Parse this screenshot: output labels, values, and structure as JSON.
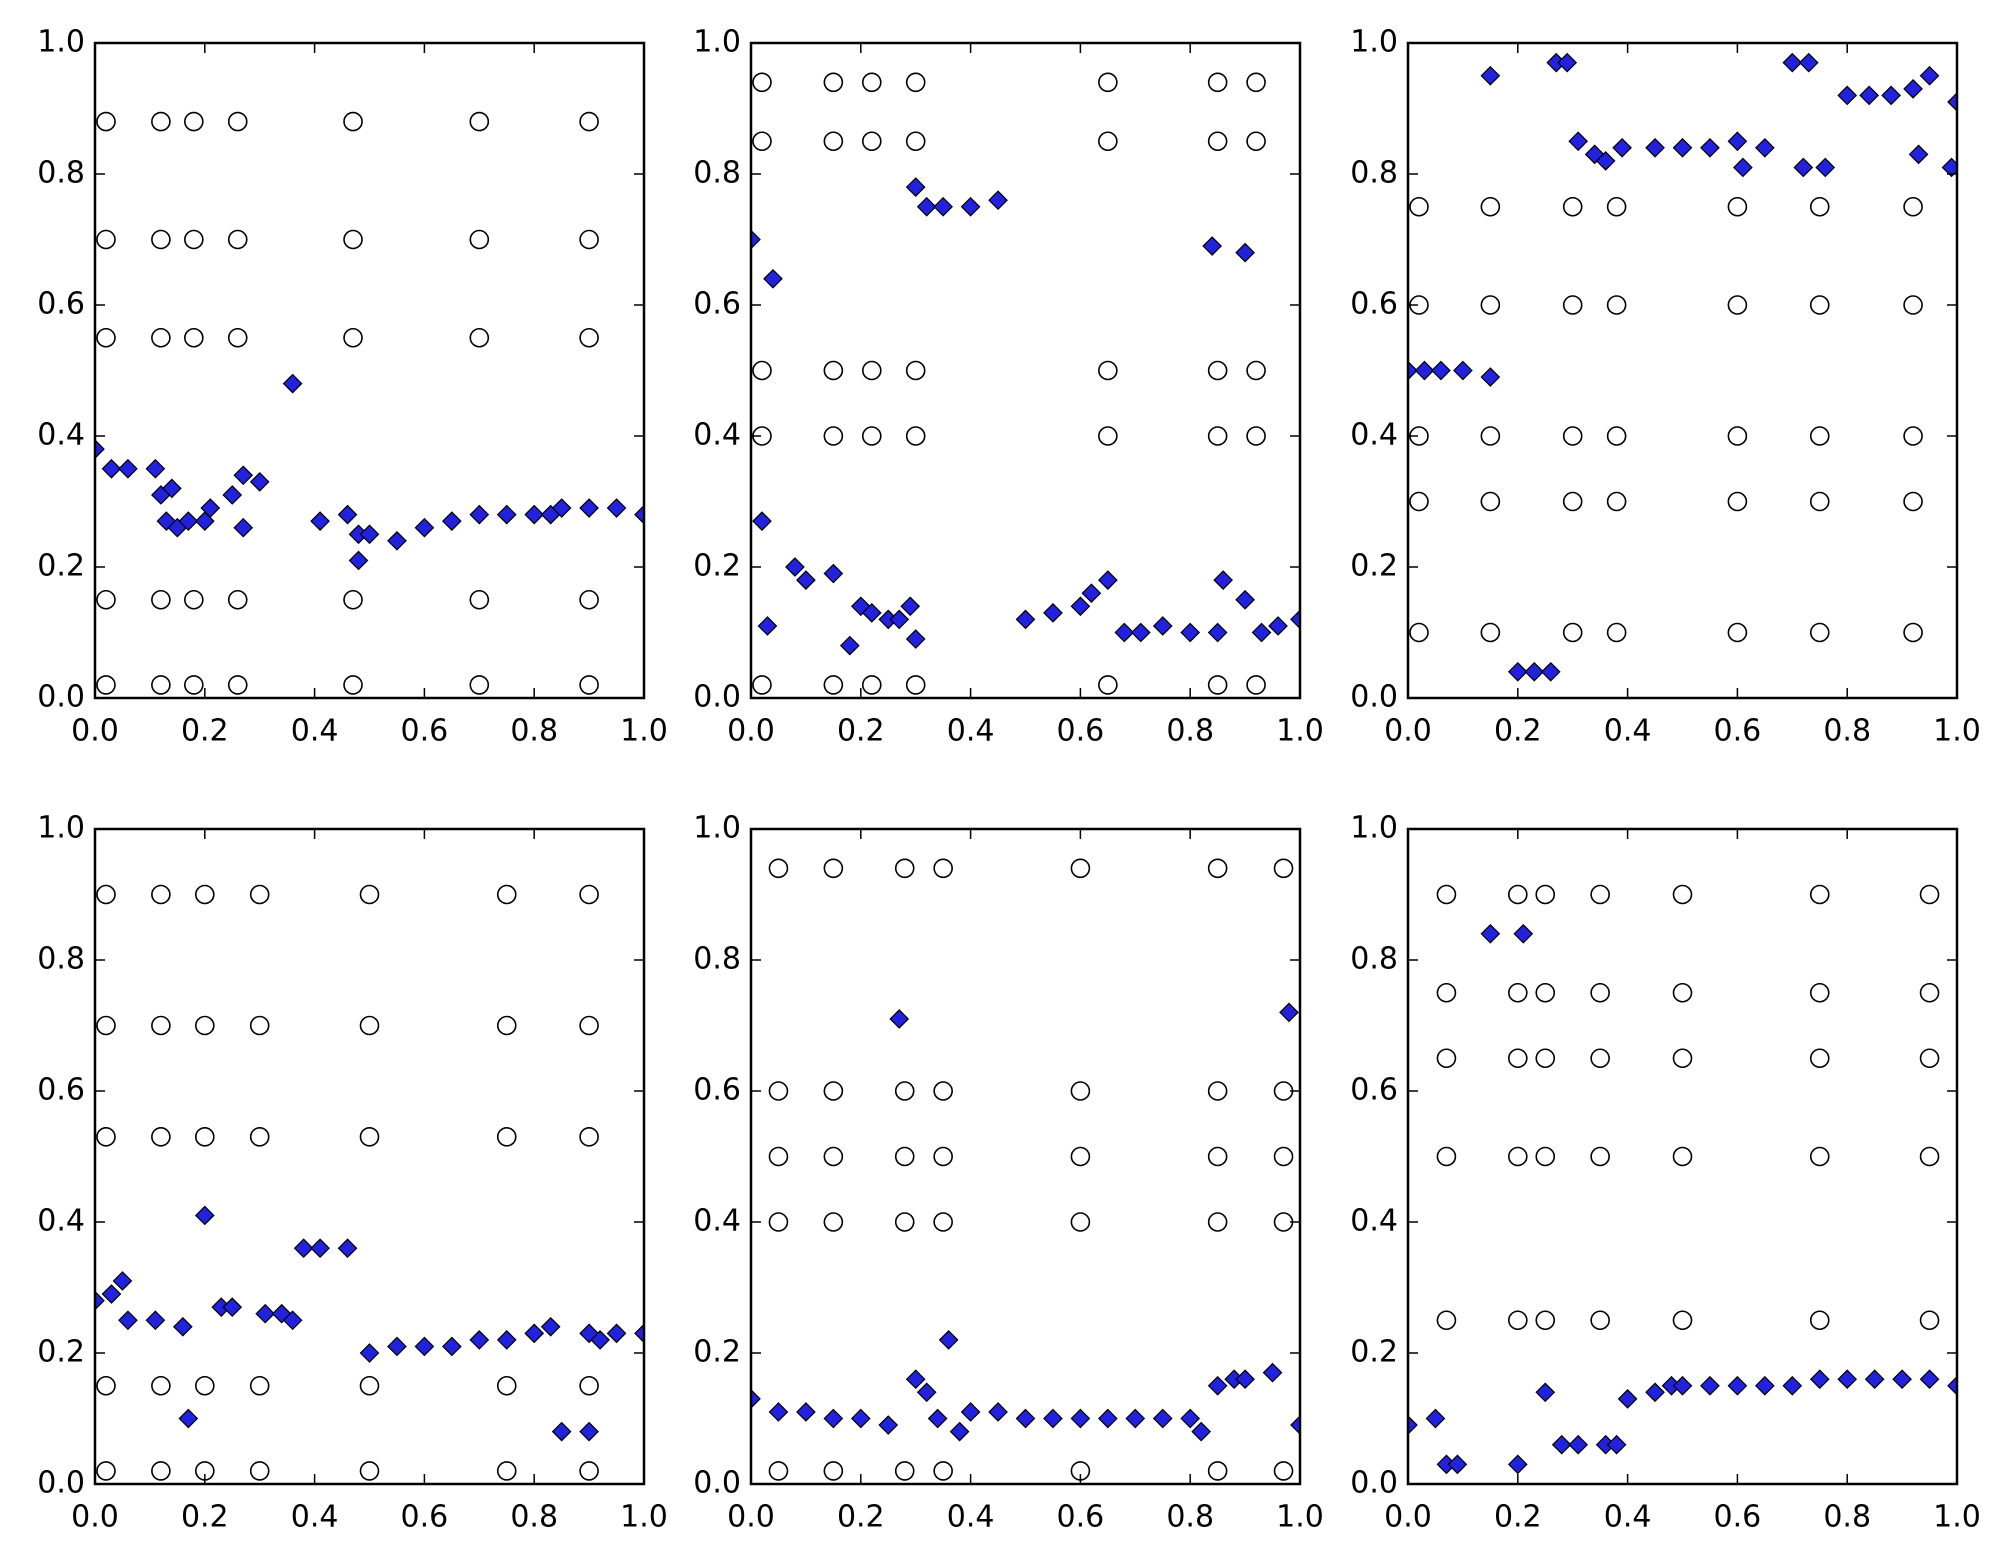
{
  "chart_data": [
    {
      "type": "scatter",
      "xlim": [
        0,
        1
      ],
      "ylim": [
        0,
        1
      ],
      "xticks": [
        {
          "value": 0,
          "label": "0.0"
        },
        0.2,
        0.4,
        0.6,
        0.8,
        {
          "value": 1,
          "label": "1.0"
        }
      ],
      "yticks": [
        {
          "value": 0,
          "label": "0.0"
        },
        0.2,
        0.4,
        0.6,
        0.8,
        {
          "value": 1,
          "label": "1.0"
        }
      ],
      "series": [
        {
          "marker": "circle",
          "color": "#000000",
          "x": [
            0.02,
            0.12,
            0.18,
            0.26,
            0.47,
            0.7,
            0.9,
            0.02,
            0.12,
            0.18,
            0.26,
            0.47,
            0.7,
            0.9,
            0.02,
            0.12,
            0.18,
            0.26,
            0.47,
            0.7,
            0.9,
            0.02,
            0.12,
            0.18,
            0.26,
            0.47,
            0.7,
            0.9,
            0.02,
            0.12,
            0.18,
            0.26,
            0.47,
            0.7,
            0.9
          ],
          "y": [
            0.02,
            0.02,
            0.02,
            0.02,
            0.02,
            0.02,
            0.02,
            0.15,
            0.15,
            0.15,
            0.15,
            0.15,
            0.15,
            0.15,
            0.55,
            0.55,
            0.55,
            0.55,
            0.55,
            0.55,
            0.55,
            0.7,
            0.7,
            0.7,
            0.7,
            0.7,
            0.7,
            0.7,
            0.88,
            0.88,
            0.88,
            0.88,
            0.88,
            0.88,
            0.88
          ]
        },
        {
          "marker": "diamond",
          "color": "#2222dd",
          "x": [
            0.0,
            0.03,
            0.06,
            0.11,
            0.12,
            0.14,
            0.13,
            0.15,
            0.17,
            0.2,
            0.21,
            0.25,
            0.27,
            0.3,
            0.27,
            0.36,
            0.41,
            0.46,
            0.48,
            0.5,
            0.48,
            0.55,
            0.6,
            0.65,
            0.7,
            0.75,
            0.8,
            0.83,
            0.85,
            0.9,
            0.95,
            1.0
          ],
          "y": [
            0.38,
            0.35,
            0.35,
            0.35,
            0.31,
            0.32,
            0.27,
            0.26,
            0.27,
            0.27,
            0.29,
            0.31,
            0.34,
            0.33,
            0.26,
            0.48,
            0.27,
            0.28,
            0.25,
            0.25,
            0.21,
            0.24,
            0.26,
            0.27,
            0.28,
            0.28,
            0.28,
            0.28,
            0.29,
            0.29,
            0.29,
            0.28
          ]
        }
      ]
    },
    {
      "type": "scatter",
      "xlim": [
        0,
        1
      ],
      "ylim": [
        0,
        1
      ],
      "xticks": [
        {
          "value": 0,
          "label": "0.0"
        },
        0.2,
        0.4,
        0.6,
        0.8,
        {
          "value": 1,
          "label": "1.0"
        }
      ],
      "yticks": [
        {
          "value": 0,
          "label": "0.0"
        },
        0.2,
        0.4,
        0.6,
        0.8,
        {
          "value": 1,
          "label": "1.0"
        }
      ],
      "series": [
        {
          "marker": "circle",
          "color": "#000000",
          "x": [
            0.02,
            0.15,
            0.22,
            0.3,
            0.65,
            0.85,
            0.92,
            0.02,
            0.15,
            0.22,
            0.3,
            0.65,
            0.85,
            0.92,
            0.02,
            0.15,
            0.22,
            0.3,
            0.65,
            0.85,
            0.92,
            0.02,
            0.15,
            0.22,
            0.3,
            0.65,
            0.85,
            0.92,
            0.02,
            0.15,
            0.22,
            0.3,
            0.65,
            0.85,
            0.92
          ],
          "y": [
            0.02,
            0.02,
            0.02,
            0.02,
            0.02,
            0.02,
            0.02,
            0.4,
            0.4,
            0.4,
            0.4,
            0.4,
            0.4,
            0.4,
            0.5,
            0.5,
            0.5,
            0.5,
            0.5,
            0.5,
            0.5,
            0.85,
            0.85,
            0.85,
            0.85,
            0.85,
            0.85,
            0.85,
            0.94,
            0.94,
            0.94,
            0.94,
            0.94,
            0.94,
            0.94
          ]
        },
        {
          "marker": "diamond",
          "color": "#2222dd",
          "x": [
            0.0,
            0.04,
            0.02,
            0.03,
            0.08,
            0.1,
            0.15,
            0.18,
            0.2,
            0.22,
            0.25,
            0.27,
            0.29,
            0.3,
            0.3,
            0.32,
            0.35,
            0.4,
            0.45,
            0.5,
            0.55,
            0.6,
            0.62,
            0.65,
            0.68,
            0.71,
            0.75,
            0.8,
            0.85,
            0.84,
            0.9,
            0.86,
            0.9,
            0.93,
            0.96,
            1.0
          ],
          "y": [
            0.7,
            0.64,
            0.27,
            0.11,
            0.2,
            0.18,
            0.19,
            0.08,
            0.14,
            0.13,
            0.12,
            0.12,
            0.14,
            0.09,
            0.78,
            0.75,
            0.75,
            0.75,
            0.76,
            0.12,
            0.13,
            0.14,
            0.16,
            0.18,
            0.1,
            0.1,
            0.11,
            0.1,
            0.1,
            0.69,
            0.68,
            0.18,
            0.15,
            0.1,
            0.11,
            0.12
          ]
        }
      ]
    },
    {
      "type": "scatter",
      "xlim": [
        0,
        1
      ],
      "ylim": [
        0,
        1
      ],
      "xticks": [
        {
          "value": 0,
          "label": "0.0"
        },
        0.2,
        0.4,
        0.6,
        0.8,
        {
          "value": 1,
          "label": "1.0"
        }
      ],
      "yticks": [
        {
          "value": 0,
          "label": "0.0"
        },
        0.2,
        0.4,
        0.6,
        0.8,
        {
          "value": 1,
          "label": "1.0"
        }
      ],
      "series": [
        {
          "marker": "circle",
          "color": "#000000",
          "x": [
            0.02,
            0.15,
            0.3,
            0.38,
            0.6,
            0.75,
            0.92,
            0.02,
            0.15,
            0.3,
            0.38,
            0.6,
            0.75,
            0.92,
            0.02,
            0.15,
            0.3,
            0.38,
            0.6,
            0.75,
            0.92,
            0.02,
            0.15,
            0.3,
            0.38,
            0.6,
            0.75,
            0.92,
            0.02,
            0.15,
            0.3,
            0.38,
            0.6,
            0.75,
            0.92
          ],
          "y": [
            0.1,
            0.1,
            0.1,
            0.1,
            0.1,
            0.1,
            0.1,
            0.3,
            0.3,
            0.3,
            0.3,
            0.3,
            0.3,
            0.3,
            0.4,
            0.4,
            0.4,
            0.4,
            0.4,
            0.4,
            0.4,
            0.6,
            0.6,
            0.6,
            0.6,
            0.6,
            0.6,
            0.6,
            0.75,
            0.75,
            0.75,
            0.75,
            0.75,
            0.75,
            0.75
          ]
        },
        {
          "marker": "diamond",
          "color": "#2222dd",
          "x": [
            0.0,
            0.03,
            0.06,
            0.1,
            0.15,
            0.2,
            0.23,
            0.26,
            0.15,
            0.27,
            0.29,
            0.31,
            0.34,
            0.36,
            0.39,
            0.45,
            0.5,
            0.55,
            0.6,
            0.61,
            0.65,
            0.7,
            0.73,
            0.72,
            0.76,
            0.8,
            0.84,
            0.88,
            0.92,
            0.95,
            0.93,
            0.99,
            1.0
          ],
          "y": [
            0.5,
            0.5,
            0.5,
            0.5,
            0.49,
            0.04,
            0.04,
            0.04,
            0.95,
            0.97,
            0.97,
            0.85,
            0.83,
            0.82,
            0.84,
            0.84,
            0.84,
            0.84,
            0.85,
            0.81,
            0.84,
            0.97,
            0.97,
            0.81,
            0.81,
            0.92,
            0.92,
            0.92,
            0.93,
            0.95,
            0.83,
            0.81,
            0.91
          ]
        }
      ]
    },
    {
      "type": "scatter",
      "xlim": [
        0,
        1
      ],
      "ylim": [
        0,
        1
      ],
      "xticks": [
        {
          "value": 0,
          "label": "0.0"
        },
        0.2,
        0.4,
        0.6,
        0.8,
        {
          "value": 1,
          "label": "1.0"
        }
      ],
      "yticks": [
        {
          "value": 0,
          "label": "0.0"
        },
        0.2,
        0.4,
        0.6,
        0.8,
        {
          "value": 1,
          "label": "1.0"
        }
      ],
      "series": [
        {
          "marker": "circle",
          "color": "#000000",
          "x": [
            0.02,
            0.12,
            0.2,
            0.3,
            0.5,
            0.75,
            0.9,
            0.02,
            0.12,
            0.2,
            0.3,
            0.5,
            0.75,
            0.9,
            0.02,
            0.12,
            0.2,
            0.3,
            0.5,
            0.75,
            0.9,
            0.02,
            0.12,
            0.2,
            0.3,
            0.5,
            0.75,
            0.9,
            0.02,
            0.12,
            0.2,
            0.3,
            0.5,
            0.75,
            0.9
          ],
          "y": [
            0.02,
            0.02,
            0.02,
            0.02,
            0.02,
            0.02,
            0.02,
            0.15,
            0.15,
            0.15,
            0.15,
            0.15,
            0.15,
            0.15,
            0.53,
            0.53,
            0.53,
            0.53,
            0.53,
            0.53,
            0.53,
            0.7,
            0.7,
            0.7,
            0.7,
            0.7,
            0.7,
            0.7,
            0.9,
            0.9,
            0.9,
            0.9,
            0.9,
            0.9,
            0.9
          ]
        },
        {
          "marker": "diamond",
          "color": "#2222dd",
          "x": [
            0.0,
            0.03,
            0.05,
            0.06,
            0.11,
            0.16,
            0.17,
            0.2,
            0.23,
            0.25,
            0.31,
            0.34,
            0.36,
            0.38,
            0.41,
            0.46,
            0.5,
            0.55,
            0.6,
            0.65,
            0.7,
            0.75,
            0.8,
            0.83,
            0.85,
            0.9,
            0.9,
            0.92,
            0.95,
            1.0
          ],
          "y": [
            0.28,
            0.29,
            0.31,
            0.25,
            0.25,
            0.24,
            0.1,
            0.41,
            0.27,
            0.27,
            0.26,
            0.26,
            0.25,
            0.36,
            0.36,
            0.36,
            0.2,
            0.21,
            0.21,
            0.21,
            0.22,
            0.22,
            0.23,
            0.24,
            0.08,
            0.08,
            0.23,
            0.22,
            0.23,
            0.23
          ]
        }
      ]
    },
    {
      "type": "scatter",
      "xlim": [
        0,
        1
      ],
      "ylim": [
        0,
        1
      ],
      "xticks": [
        {
          "value": 0,
          "label": "0.0"
        },
        0.2,
        0.4,
        0.6,
        0.8,
        {
          "value": 1,
          "label": "1.0"
        }
      ],
      "yticks": [
        {
          "value": 0,
          "label": "0.0"
        },
        0.2,
        0.4,
        0.6,
        0.8,
        {
          "value": 1,
          "label": "1.0"
        }
      ],
      "series": [
        {
          "marker": "circle",
          "color": "#000000",
          "x": [
            0.05,
            0.15,
            0.28,
            0.35,
            0.6,
            0.85,
            0.97,
            0.05,
            0.15,
            0.28,
            0.35,
            0.6,
            0.85,
            0.97,
            0.05,
            0.15,
            0.28,
            0.35,
            0.6,
            0.85,
            0.97,
            0.05,
            0.15,
            0.28,
            0.35,
            0.6,
            0.85,
            0.97,
            0.05,
            0.15,
            0.28,
            0.35,
            0.6,
            0.85,
            0.97
          ],
          "y": [
            0.02,
            0.02,
            0.02,
            0.02,
            0.02,
            0.02,
            0.02,
            0.4,
            0.4,
            0.4,
            0.4,
            0.4,
            0.4,
            0.4,
            0.5,
            0.5,
            0.5,
            0.5,
            0.5,
            0.5,
            0.5,
            0.6,
            0.6,
            0.6,
            0.6,
            0.6,
            0.6,
            0.6,
            0.94,
            0.94,
            0.94,
            0.94,
            0.94,
            0.94,
            0.94
          ]
        },
        {
          "marker": "diamond",
          "color": "#2222dd",
          "x": [
            0.0,
            0.05,
            0.1,
            0.15,
            0.2,
            0.25,
            0.27,
            0.3,
            0.32,
            0.34,
            0.36,
            0.38,
            0.4,
            0.45,
            0.5,
            0.55,
            0.6,
            0.65,
            0.7,
            0.75,
            0.8,
            0.82,
            0.85,
            0.88,
            0.9,
            0.95,
            0.98,
            1.0
          ],
          "y": [
            0.13,
            0.11,
            0.11,
            0.1,
            0.1,
            0.09,
            0.71,
            0.16,
            0.14,
            0.1,
            0.22,
            0.08,
            0.11,
            0.11,
            0.1,
            0.1,
            0.1,
            0.1,
            0.1,
            0.1,
            0.1,
            0.08,
            0.15,
            0.16,
            0.16,
            0.17,
            0.72,
            0.09
          ]
        }
      ]
    },
    {
      "type": "scatter",
      "xlim": [
        0,
        1
      ],
      "ylim": [
        0,
        1
      ],
      "xticks": [
        {
          "value": 0,
          "label": "0.0"
        },
        0.2,
        0.4,
        0.6,
        0.8,
        {
          "value": 1,
          "label": "1.0"
        }
      ],
      "yticks": [
        {
          "value": 0,
          "label": "0.0"
        },
        0.2,
        0.4,
        0.6,
        0.8,
        {
          "value": 1,
          "label": "1.0"
        }
      ],
      "series": [
        {
          "marker": "circle",
          "color": "#000000",
          "x": [
            0.07,
            0.2,
            0.25,
            0.35,
            0.5,
            0.75,
            0.95,
            0.07,
            0.2,
            0.25,
            0.35,
            0.5,
            0.75,
            0.95,
            0.07,
            0.2,
            0.25,
            0.35,
            0.5,
            0.75,
            0.95,
            0.07,
            0.2,
            0.25,
            0.35,
            0.5,
            0.75,
            0.95,
            0.07,
            0.2,
            0.25,
            0.35,
            0.5,
            0.75,
            0.95
          ],
          "y": [
            0.25,
            0.25,
            0.25,
            0.25,
            0.25,
            0.25,
            0.25,
            0.5,
            0.5,
            0.5,
            0.5,
            0.5,
            0.5,
            0.5,
            0.65,
            0.65,
            0.65,
            0.65,
            0.65,
            0.65,
            0.65,
            0.75,
            0.75,
            0.75,
            0.75,
            0.75,
            0.75,
            0.75,
            0.9,
            0.9,
            0.9,
            0.9,
            0.9,
            0.9,
            0.9
          ]
        },
        {
          "marker": "diamond",
          "color": "#2222dd",
          "x": [
            0.0,
            0.05,
            0.07,
            0.09,
            0.15,
            0.21,
            0.2,
            0.25,
            0.28,
            0.31,
            0.36,
            0.38,
            0.4,
            0.45,
            0.48,
            0.5,
            0.55,
            0.6,
            0.65,
            0.7,
            0.75,
            0.8,
            0.85,
            0.9,
            0.95,
            1.0
          ],
          "y": [
            0.09,
            0.1,
            0.03,
            0.03,
            0.84,
            0.84,
            0.03,
            0.14,
            0.06,
            0.06,
            0.06,
            0.06,
            0.13,
            0.14,
            0.15,
            0.15,
            0.15,
            0.15,
            0.15,
            0.15,
            0.16,
            0.16,
            0.16,
            0.16,
            0.16,
            0.15
          ]
        }
      ]
    }
  ]
}
